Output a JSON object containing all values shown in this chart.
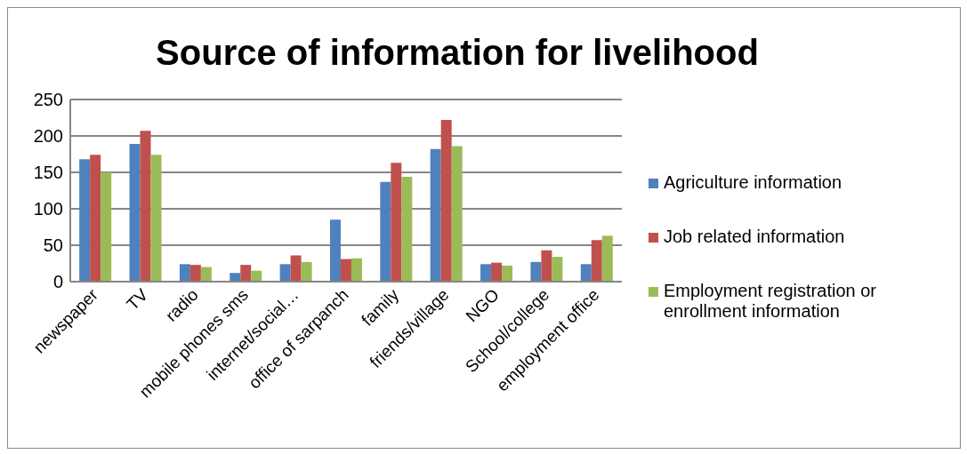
{
  "chart_data": {
    "type": "bar",
    "title": "Source of information for livelihood",
    "categories": [
      "newspaper",
      "TV",
      "radio",
      "mobile phones sms",
      "internet/social…",
      "office of sarpanch",
      "family",
      "friends/village",
      "NGO",
      "School/college",
      "employment office"
    ],
    "series": [
      {
        "name": "Agriculture information",
        "color": "#4f81bd",
        "values": [
          168,
          189,
          24,
          12,
          24,
          85,
          137,
          182,
          24,
          27,
          24
        ]
      },
      {
        "name": "Job related information",
        "color": "#c0504d",
        "values": [
          174,
          207,
          23,
          23,
          36,
          31,
          163,
          222,
          26,
          43,
          57
        ]
      },
      {
        "name": "Employment registration or enrollment information",
        "color": "#9bbb59",
        "values": [
          150,
          174,
          20,
          15,
          27,
          32,
          144,
          186,
          22,
          34,
          63
        ]
      }
    ],
    "ylim": [
      0,
      250
    ],
    "yticks": [
      0,
      50,
      100,
      150,
      200,
      250
    ],
    "grid": "y",
    "legend": "right"
  }
}
